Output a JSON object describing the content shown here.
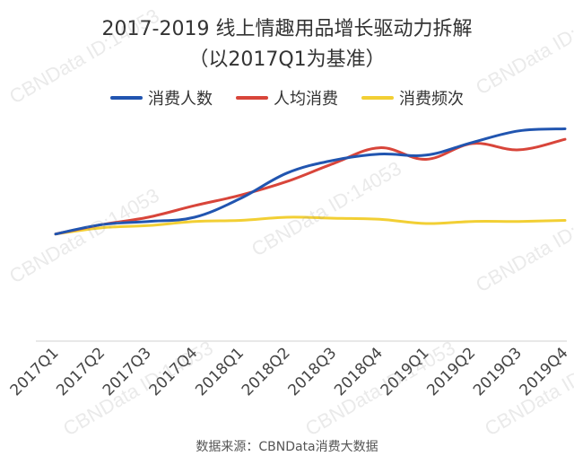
{
  "chart_data": {
    "type": "line",
    "title": "2017-2019 线上情趣用品增长驱动力拆解",
    "subtitle": "（以2017Q1为基准）",
    "xlabel": "",
    "ylabel": "",
    "categories": [
      "2017Q1",
      "2017Q2",
      "2017Q3",
      "2017Q4",
      "2018Q1",
      "2018Q2",
      "2018Q3",
      "2018Q4",
      "2019Q1",
      "2019Q2",
      "2019Q3",
      "2019Q4"
    ],
    "ylim": [
      0,
      2.2
    ],
    "grid": false,
    "legend": "top",
    "series": [
      {
        "name": "消费人数",
        "color": "#2155b0",
        "values": [
          1.0,
          1.09,
          1.12,
          1.16,
          1.34,
          1.58,
          1.7,
          1.76,
          1.75,
          1.87,
          1.98,
          2.0
        ]
      },
      {
        "name": "人均消费",
        "color": "#d8453a",
        "values": [
          1.0,
          1.09,
          1.16,
          1.27,
          1.37,
          1.5,
          1.67,
          1.82,
          1.71,
          1.86,
          1.8,
          1.9
        ]
      },
      {
        "name": "消费频次",
        "color": "#f2cf34",
        "values": [
          1.0,
          1.06,
          1.08,
          1.12,
          1.13,
          1.16,
          1.15,
          1.14,
          1.1,
          1.12,
          1.12,
          1.13
        ]
      }
    ]
  },
  "source": "数据来源：CBNData消费大数据",
  "watermark_text": "CBNData ID:14053"
}
